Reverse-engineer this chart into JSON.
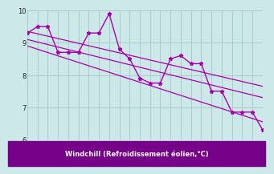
{
  "x_data": [
    0,
    1,
    2,
    3,
    4,
    5,
    6,
    7,
    8,
    9,
    10,
    11,
    12,
    13,
    14,
    15,
    16,
    17,
    18,
    19,
    20,
    21,
    22,
    23
  ],
  "y_data": [
    9.3,
    9.5,
    9.5,
    8.7,
    8.7,
    8.7,
    9.3,
    9.3,
    9.9,
    8.8,
    8.5,
    7.9,
    7.75,
    7.75,
    8.5,
    8.6,
    8.35,
    8.35,
    7.5,
    7.5,
    6.85,
    6.85,
    6.85,
    6.3
  ],
  "trend1_x": [
    0,
    23
  ],
  "trend1_y": [
    9.35,
    7.65
  ],
  "trend2_x": [
    0,
    23
  ],
  "trend2_y": [
    9.1,
    7.3
  ],
  "trend3_x": [
    0,
    23
  ],
  "trend3_y": [
    8.9,
    6.55
  ],
  "line_color": "#aa00aa",
  "bg_color": "#cce8e8",
  "grid_color": "#aacccc",
  "xlabel": "Windchill (Refroidissement éolien,°C)",
  "xlabel_bg": "#770088",
  "xlabel_color": "#ffffff",
  "ylim": [
    6,
    10
  ],
  "xlim": [
    0,
    23
  ],
  "yticks": [
    6,
    7,
    8,
    9,
    10
  ],
  "xticks": [
    0,
    1,
    2,
    3,
    4,
    5,
    6,
    7,
    8,
    9,
    10,
    11,
    12,
    13,
    14,
    15,
    16,
    17,
    18,
    19,
    20,
    21,
    22,
    23
  ]
}
